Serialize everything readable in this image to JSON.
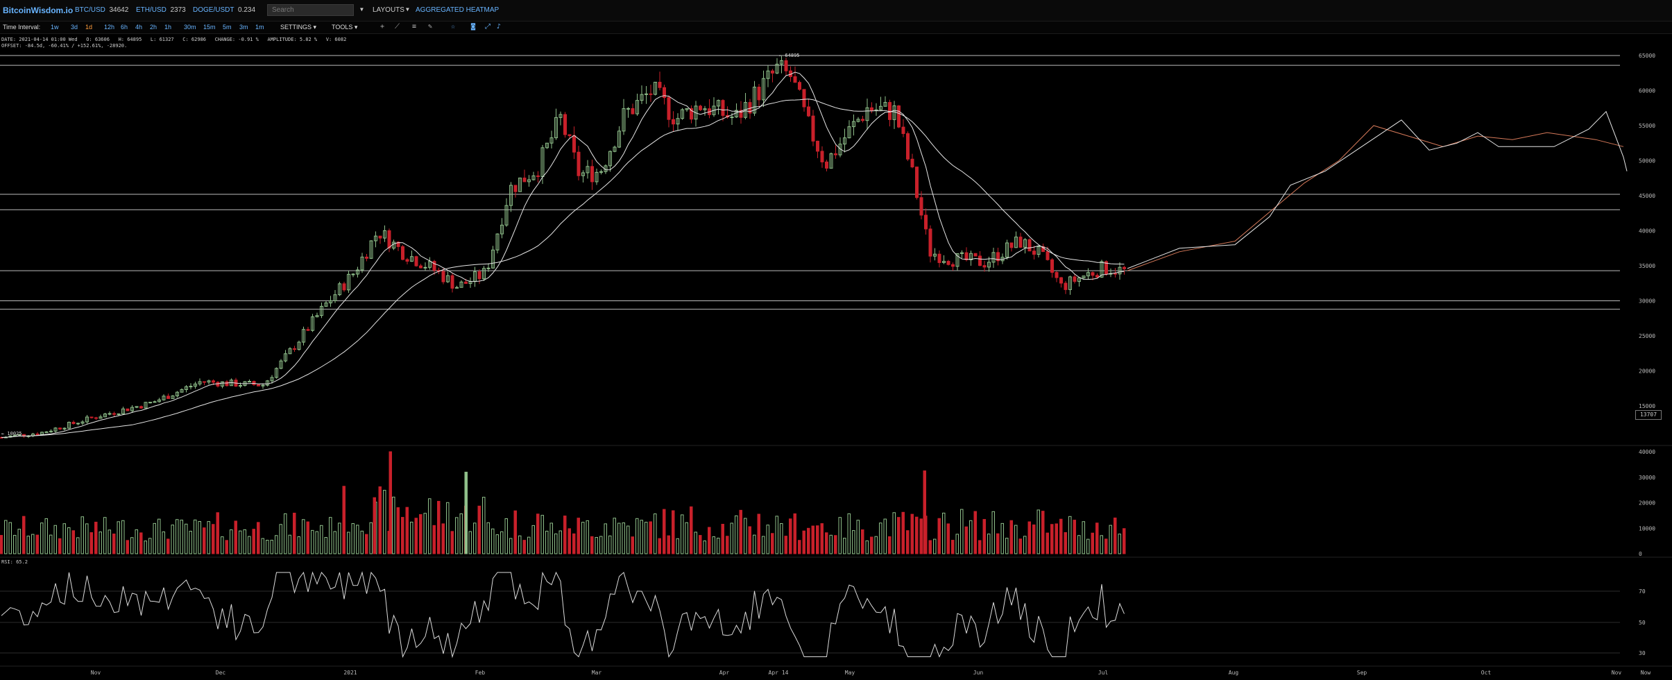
{
  "header": {
    "logo": "BitcoinWisdom.io",
    "tickers": [
      {
        "symbol": "BTC/USD",
        "price": "34642"
      },
      {
        "symbol": "ETH/USD",
        "price": "2373"
      },
      {
        "symbol": "DOGE/USDT",
        "price": "0.234"
      }
    ],
    "search_placeholder": "Search",
    "layouts_label": "LAYOUTS",
    "heatmap_label": "AGGREGATED HEATMAP"
  },
  "toolbar": {
    "time_interval_label": "Time Interval:",
    "intervals": [
      "1w",
      "3d",
      "1d",
      "12h",
      "6h",
      "4h",
      "2h",
      "1h",
      "30m",
      "15m",
      "5m",
      "3m",
      "1m"
    ],
    "active_interval": "1d",
    "settings_label": "SETTINGS",
    "tools_label": "TOOLS"
  },
  "info": {
    "date_line": "DATE: 2021-04-14 01:00 Wed   O: 63606   H: 64895   L: 61327   C: 62986   CHANGE: -0.91 %   AMPLITUDE: 5.82 %   V: 6082",
    "offset_line": "OFFSET: -84.5d, -60.41% / +152.61%, -28920."
  },
  "chart": {
    "high_label": "← 64895",
    "low_label": "← 10025",
    "last_price": "13707",
    "rsi_label": "RSI: 65.2",
    "price_ticks": [
      "65000",
      "60000",
      "55000",
      "50000",
      "45000",
      "40000",
      "35000",
      "30000",
      "25000",
      "20000",
      "15000"
    ],
    "volume_ticks": [
      "40000",
      "30000",
      "20000",
      "10000",
      "0"
    ],
    "rsi_ticks": [
      "70",
      "50",
      "30"
    ],
    "x_ticks": [
      "Nov",
      "Dec",
      "2021",
      "Feb",
      "Mar",
      "Apr",
      "Apr 14",
      "May",
      "Jun",
      "Jul",
      "Aug",
      "Sep",
      "Oct",
      "Nov",
      "Now"
    ],
    "horizontal_levels": [
      65000,
      63600,
      45200,
      43000,
      34300,
      30000,
      28800
    ],
    "colors": {
      "up": "#8fbf8a",
      "down": "#c8202a",
      "ma": "#e6e6e6",
      "projection": "#d77a5a",
      "grid": "#2a2a2a",
      "level": "#bbbbbb"
    }
  }
}
